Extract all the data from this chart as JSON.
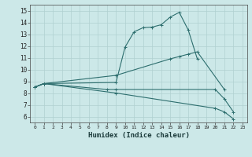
{
  "line1_x": [
    0,
    1,
    9,
    10,
    11,
    12,
    13,
    14,
    15,
    16,
    17,
    18
  ],
  "line1_y": [
    8.5,
    8.8,
    8.9,
    11.9,
    13.2,
    13.55,
    13.6,
    13.8,
    14.45,
    14.85,
    13.35,
    10.9
  ],
  "line2_x": [
    0,
    1,
    9,
    15,
    16,
    17,
    18,
    21
  ],
  "line2_y": [
    8.5,
    8.8,
    9.5,
    10.9,
    11.1,
    11.3,
    11.5,
    8.3
  ],
  "line3_x": [
    0,
    1,
    8,
    9,
    20,
    21,
    22
  ],
  "line3_y": [
    8.5,
    8.8,
    8.3,
    8.3,
    8.3,
    7.5,
    6.4
  ],
  "line4_x": [
    0,
    1,
    9,
    20,
    21,
    22
  ],
  "line4_y": [
    8.5,
    8.8,
    8.0,
    6.7,
    6.4,
    5.8
  ],
  "bg_color": "#cce8e8",
  "grid_color": "#b0d0d0",
  "line_color": "#2d6e6e",
  "xlabel": "Humidex (Indice chaleur)",
  "ylim": [
    5.5,
    15.5
  ],
  "xlim": [
    -0.5,
    23.5
  ],
  "yticks": [
    6,
    7,
    8,
    9,
    10,
    11,
    12,
    13,
    14,
    15
  ],
  "xticks": [
    0,
    1,
    2,
    3,
    4,
    5,
    6,
    7,
    8,
    9,
    10,
    11,
    12,
    13,
    14,
    15,
    16,
    17,
    18,
    19,
    20,
    21,
    22,
    23
  ]
}
